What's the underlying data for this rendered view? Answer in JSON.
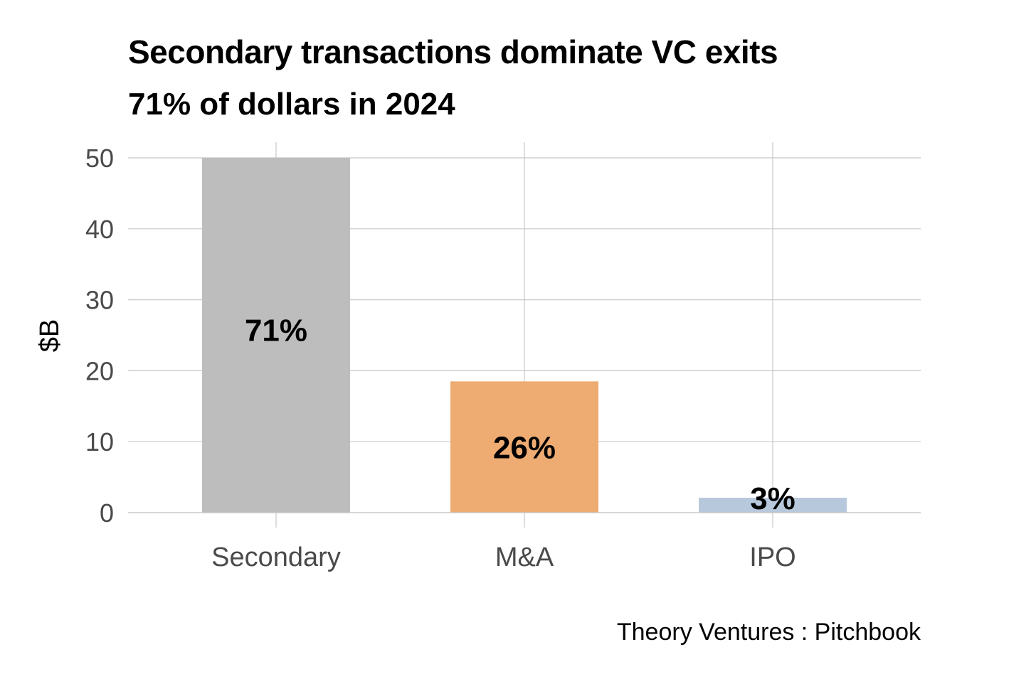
{
  "chart_data": {
    "type": "bar",
    "title": "Secondary transactions dominate VC exits",
    "subtitle": "71% of dollars in 2024",
    "ylabel": "$B",
    "xlabel": "",
    "ylim": [
      0,
      50
    ],
    "yticks": [
      0,
      10,
      20,
      30,
      40,
      50
    ],
    "grid": true,
    "categories": [
      "Secondary",
      "M&A",
      "IPO"
    ],
    "values": [
      50,
      18.5,
      2.1
    ],
    "data_labels": [
      "71%",
      "26%",
      "3%"
    ],
    "colors": [
      "#bdbdbd",
      "#eeab72",
      "#b8c8dc"
    ],
    "source": "Theory Ventures : Pitchbook"
  }
}
